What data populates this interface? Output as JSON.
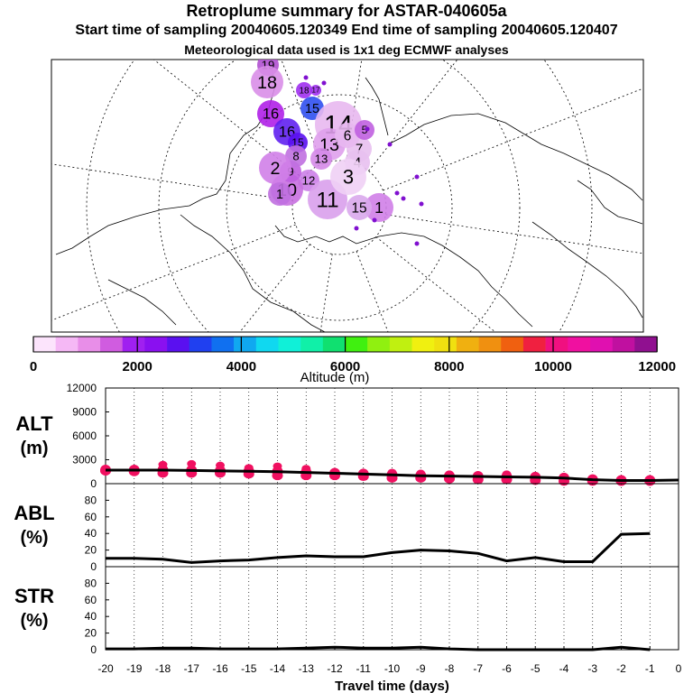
{
  "title": "Retroplume summary for ASTAR-040605a",
  "subtitle": "Start time of sampling 20040605.120349     End time of sampling 20040605.120407",
  "met_note": "Meteorological data used is 1x1 deg ECMWF analyses",
  "colorbar": {
    "label": "Altitude (m)",
    "ticks": [
      "0",
      "2000",
      "4000",
      "6000",
      "8000",
      "10000",
      "12000"
    ],
    "colors": [
      "#fce4fc",
      "#f5b8f5",
      "#e88ee8",
      "#d05ce0",
      "#a020f0",
      "#8a10f0",
      "#5a10f0",
      "#2040f0",
      "#1070f0",
      "#10a8f0",
      "#10d8f0",
      "#10f0d8",
      "#10f0a8",
      "#10e070",
      "#40f010",
      "#90f010",
      "#c0f010",
      "#f0f010",
      "#f0e010",
      "#f0b010",
      "#f09010",
      "#f06010",
      "#f02040",
      "#f01080",
      "#f010a0",
      "#e010b0",
      "#c010a0",
      "#901090"
    ]
  },
  "map_labels": [
    "19",
    "18",
    "18",
    "17",
    "16",
    "16",
    "15",
    "15",
    "14",
    "13",
    "13",
    "12",
    "11",
    "10",
    "9",
    "8",
    "7",
    "6",
    "5",
    "4",
    "3",
    "2",
    "1",
    "1",
    "15"
  ],
  "chart_data": [
    {
      "type": "scatter",
      "panel": "ALT",
      "ylabel": "ALT\n(m)",
      "ylim": [
        0,
        12000
      ],
      "yticks": [
        "12000",
        "9000",
        "6000",
        "3000",
        "0"
      ],
      "x": [
        -20,
        -19,
        -18,
        -17,
        -16,
        -15,
        -14,
        -13,
        -12,
        -11,
        -10,
        -9,
        -8,
        -7,
        -6,
        -5,
        -4,
        -3,
        -2,
        -1,
        0
      ],
      "mean_line": [
        1700,
        1700,
        1700,
        1650,
        1600,
        1550,
        1500,
        1400,
        1300,
        1200,
        1100,
        1000,
        950,
        900,
        850,
        800,
        700,
        500,
        400,
        400,
        450
      ],
      "points_upper": [
        1900,
        1600,
        2400,
        2500,
        2300,
        2000,
        2200,
        1900,
        1400,
        1300,
        1400,
        1300,
        1200,
        1100,
        1200,
        1000,
        900,
        700,
        500,
        400
      ],
      "points_lower": [
        1600,
        1500,
        1300,
        1300,
        1300,
        1200,
        1000,
        1000,
        1000,
        900,
        700,
        700,
        600,
        500,
        500,
        400,
        300,
        300,
        300,
        300
      ]
    },
    {
      "type": "line",
      "panel": "ABL",
      "ylabel": "ABL\n(%)",
      "ylim": [
        0,
        100
      ],
      "yticks": [
        "80",
        "60",
        "40",
        "20",
        "0"
      ],
      "x": [
        -20,
        -19,
        -18,
        -17,
        -16,
        -15,
        -14,
        -13,
        -12,
        -11,
        -10,
        -9,
        -8,
        -7,
        -6,
        -5,
        -4,
        -3,
        -2,
        -1
      ],
      "values": [
        10,
        10,
        9,
        5,
        7,
        8,
        11,
        13,
        12,
        12,
        17,
        20,
        19,
        16,
        7,
        11,
        6,
        6,
        39,
        40
      ]
    },
    {
      "type": "line",
      "panel": "STR",
      "ylabel": "STR\n(%)",
      "ylim": [
        0,
        100
      ],
      "yticks": [
        "80",
        "60",
        "40",
        "20",
        "0"
      ],
      "x": [
        -20,
        -19,
        -18,
        -17,
        -16,
        -15,
        -14,
        -13,
        -12,
        -11,
        -10,
        -9,
        -8,
        -7,
        -6,
        -5,
        -4,
        -3,
        -2,
        -1
      ],
      "values": [
        1,
        1,
        2,
        2,
        1,
        1,
        1,
        2,
        3,
        2,
        2,
        3,
        1,
        0,
        0,
        0,
        0,
        0,
        3,
        0
      ]
    }
  ],
  "xaxis": {
    "label": "Travel time (days)",
    "ticks": [
      "-20",
      "-19",
      "-18",
      "-17",
      "-16",
      "-15",
      "-14",
      "-13",
      "-12",
      "-11",
      "-10",
      "-9",
      "-8",
      "-7",
      "-6",
      "-5",
      "-4",
      "-3",
      "-2",
      "-1",
      "0"
    ]
  },
  "colors": {
    "line": "#000000",
    "points": "#f01060",
    "frame": "#000000"
  }
}
